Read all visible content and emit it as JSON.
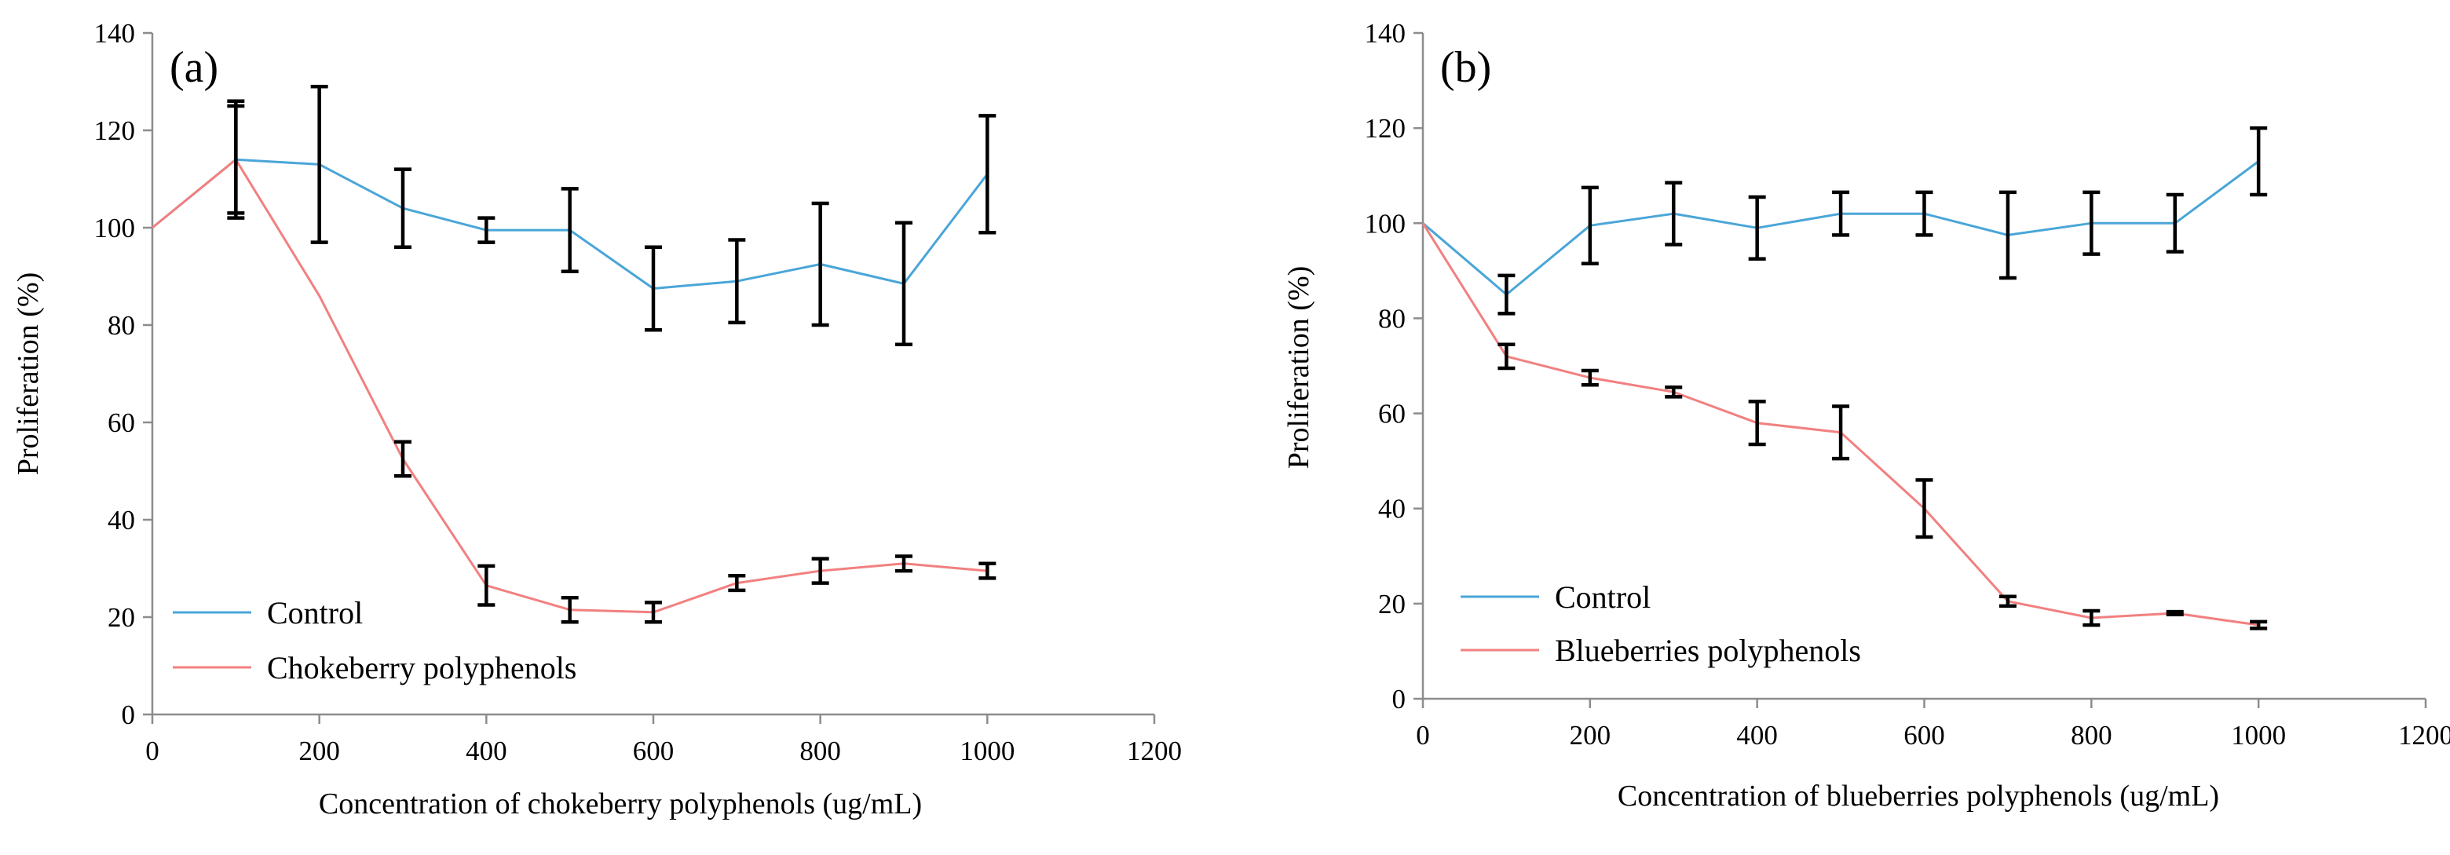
{
  "chart_data": [
    {
      "type": "line",
      "panel_label": "(a)",
      "xlabel": "Concentration of chokeberry polyphenols (ug/mL)",
      "ylabel": "Proliferation (%)",
      "xlim": [
        0,
        1200
      ],
      "ylim": [
        0,
        140
      ],
      "xticks": [
        0,
        200,
        400,
        600,
        800,
        1000,
        1200
      ],
      "yticks": [
        0,
        20,
        40,
        60,
        80,
        100,
        120,
        140
      ],
      "grid": false,
      "legend_position": "bottom-left",
      "series": [
        {
          "name": "Control",
          "color": "#4aa6d8",
          "x": [
            0,
            100,
            200,
            300,
            400,
            500,
            600,
            700,
            800,
            900,
            1000
          ],
          "y": [
            100,
            114,
            113,
            104,
            99.5,
            99.5,
            87.5,
            89,
            92.5,
            88.5,
            111
          ],
          "err": [
            0,
            11,
            16,
            8,
            2.5,
            8.5,
            8.5,
            8.5,
            12.5,
            12.5,
            12
          ]
        },
        {
          "name": "Chokeberry polyphenols",
          "color": "#f28080",
          "x": [
            0,
            100,
            200,
            300,
            400,
            500,
            600,
            700,
            800,
            900,
            1000
          ],
          "y": [
            100,
            114,
            86,
            52.5,
            26.5,
            21.5,
            21,
            27,
            29.5,
            31,
            29.5
          ],
          "err": [
            0,
            12,
            0,
            3.5,
            4,
            2.5,
            2,
            1.5,
            2.5,
            1.5,
            1.5
          ]
        }
      ]
    },
    {
      "type": "line",
      "panel_label": "(b)",
      "xlabel": "Concentration of blueberries polyphenols  (ug/mL)",
      "ylabel": "Proliferation (%)",
      "xlim": [
        0,
        1200
      ],
      "ylim": [
        0,
        140
      ],
      "xticks": [
        0,
        200,
        400,
        600,
        800,
        1000,
        1200
      ],
      "yticks": [
        0,
        20,
        40,
        60,
        80,
        100,
        120,
        140
      ],
      "grid": false,
      "legend_position": "bottom-left",
      "series": [
        {
          "name": "Control",
          "color": "#4aa6d8",
          "x": [
            0,
            100,
            200,
            300,
            400,
            500,
            600,
            700,
            800,
            900,
            1000
          ],
          "y": [
            100,
            85,
            99.5,
            102,
            99,
            102,
            102,
            97.5,
            100,
            100,
            113
          ],
          "err": [
            0,
            4,
            8,
            6.5,
            6.5,
            4.5,
            4.5,
            9,
            6.5,
            6,
            7
          ]
        },
        {
          "name": "Blueberries polyphenols",
          "color": "#f28080",
          "x": [
            0,
            100,
            200,
            300,
            400,
            500,
            600,
            700,
            800,
            900,
            1000
          ],
          "y": [
            100,
            72,
            67.5,
            64.5,
            58,
            56,
            40,
            20.5,
            17,
            18,
            15.5
          ],
          "err": [
            0,
            2.5,
            1.5,
            1,
            4.5,
            5.5,
            6,
            1,
            1.5,
            0.3,
            0.7
          ]
        }
      ]
    }
  ]
}
